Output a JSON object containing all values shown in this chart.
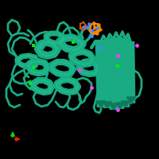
{
  "background_color": "#000000",
  "protein_color": "#1aab82",
  "protein_dark": "#0d7a5e",
  "protein_light": "#20c896",
  "ligand_orange": "#ff8800",
  "ligand_orange2": "#cc5500",
  "ion_green": "#00ee00",
  "ion_blue": "#4488ff",
  "ion_magenta": "#ee44ee",
  "axis_x": "#dd2200",
  "axis_y": "#22cc00",
  "axis_z": "#0000cc",
  "figsize": [
    2.0,
    2.0
  ],
  "dpi": 100
}
